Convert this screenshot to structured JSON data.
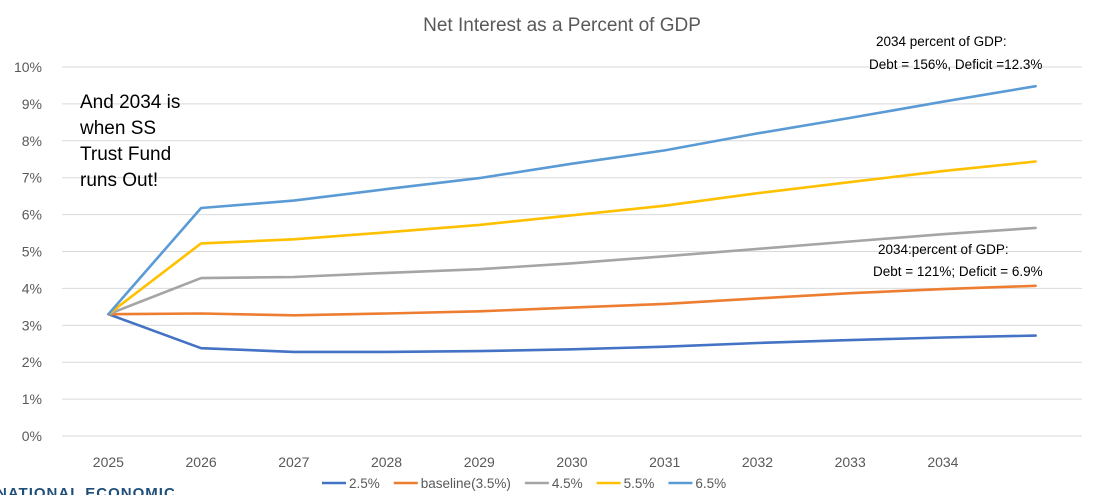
{
  "chart_data": {
    "type": "line",
    "title": "Net Interest as a Percent of GDP",
    "xlabel": "",
    "ylabel": "",
    "categories": [
      "2025",
      "2026",
      "2027",
      "2028",
      "2029",
      "2030",
      "2031",
      "2032",
      "2033",
      "2034",
      ""
    ],
    "ylim": [
      0,
      10
    ],
    "ytick_labels": [
      "0%",
      "1%",
      "2%",
      "3%",
      "4%",
      "5%",
      "6%",
      "7%",
      "8%",
      "9%",
      "10%"
    ],
    "grid": true,
    "legend_position": "bottom",
    "series": [
      {
        "name": "2.5%",
        "color": "#4472c4",
        "values": [
          3.3,
          2.38,
          2.28,
          2.28,
          2.3,
          2.35,
          2.42,
          2.52,
          2.6,
          2.67,
          2.72
        ]
      },
      {
        "name": "baseline(3.5%)",
        "color": "#ed7d31",
        "values": [
          3.3,
          3.32,
          3.27,
          3.32,
          3.38,
          3.48,
          3.58,
          3.73,
          3.87,
          3.98,
          4.07
        ]
      },
      {
        "name": "4.5%",
        "color": "#a5a5a5",
        "values": [
          3.3,
          4.28,
          4.31,
          4.42,
          4.52,
          4.68,
          4.87,
          5.07,
          5.27,
          5.47,
          5.64
        ]
      },
      {
        "name": "5.5%",
        "color": "#ffc000",
        "values": [
          3.3,
          5.22,
          5.33,
          5.52,
          5.72,
          5.98,
          6.24,
          6.58,
          6.88,
          7.18,
          7.44
        ]
      },
      {
        "name": "6.5%",
        "color": "#5b9bd5",
        "values": [
          3.3,
          6.18,
          6.38,
          6.69,
          6.99,
          7.38,
          7.74,
          8.2,
          8.62,
          9.06,
          9.48
        ]
      }
    ],
    "annotations": {
      "side_note": [
        "And 2034 is",
        "when SS",
        "Trust Fund",
        "runs Out!"
      ],
      "top_note": [
        "2034 percent of GDP:",
        "Debt = 156%, Deficit =12.3%"
      ],
      "mid_note": [
        "2034:percent of GDP:",
        "Debt = 121%; Deficit = 6.9%"
      ]
    }
  },
  "footer": {
    "logo_text": "NATIONAL ECONOMIC"
  }
}
